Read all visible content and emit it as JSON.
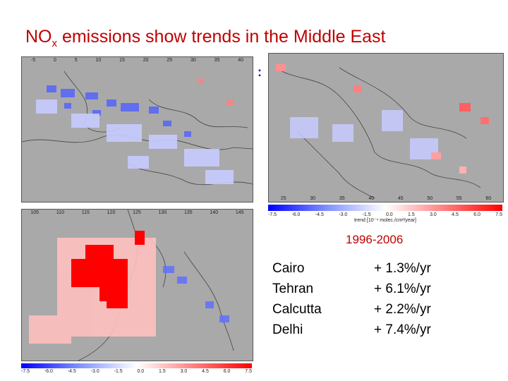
{
  "title": {
    "prefix": "NO",
    "sub": "x",
    "rest": " emissions show trends in the Middle East"
  },
  "period_label": "1996-2006",
  "ellipsis": ":",
  "colors": {
    "title": "#c00000",
    "positive": "#ff0000",
    "negative": "#2030ff",
    "land": "#a9a9a9"
  },
  "colorbar": {
    "ticks": [
      "-7.5",
      "-6.0",
      "-4.5",
      "-3.0",
      "-1.5",
      "0.0",
      "1.5",
      "3.0",
      "4.5",
      "6.0",
      "7.5"
    ],
    "label": "trend [10⁻⁴ molec./cm²/year]"
  },
  "maps": {
    "europe": {
      "lon_ticks": [
        "-5",
        "0",
        "5",
        "10",
        "15",
        "20",
        "25",
        "30",
        "35",
        "40"
      ]
    },
    "middle_east": {
      "lon_ticks": [
        "25",
        "30",
        "35",
        "40",
        "45",
        "50",
        "55",
        "60"
      ]
    },
    "east_asia": {
      "lon_ticks": [
        "105",
        "110",
        "115",
        "120",
        "125",
        "130",
        "135",
        "140",
        "145"
      ]
    }
  },
  "chart_data": {
    "type": "table",
    "title": "1996-2006",
    "cities": [
      "Cairo",
      "Tehran",
      "Calcutta",
      "Delhi"
    ],
    "trends": [
      "+ 1.3%/yr",
      "+ 6.1%/yr",
      "+ 2.2%/yr",
      "+ 7.4%/yr"
    ],
    "values_percent_per_year": [
      1.3,
      6.1,
      2.2,
      7.4
    ]
  }
}
